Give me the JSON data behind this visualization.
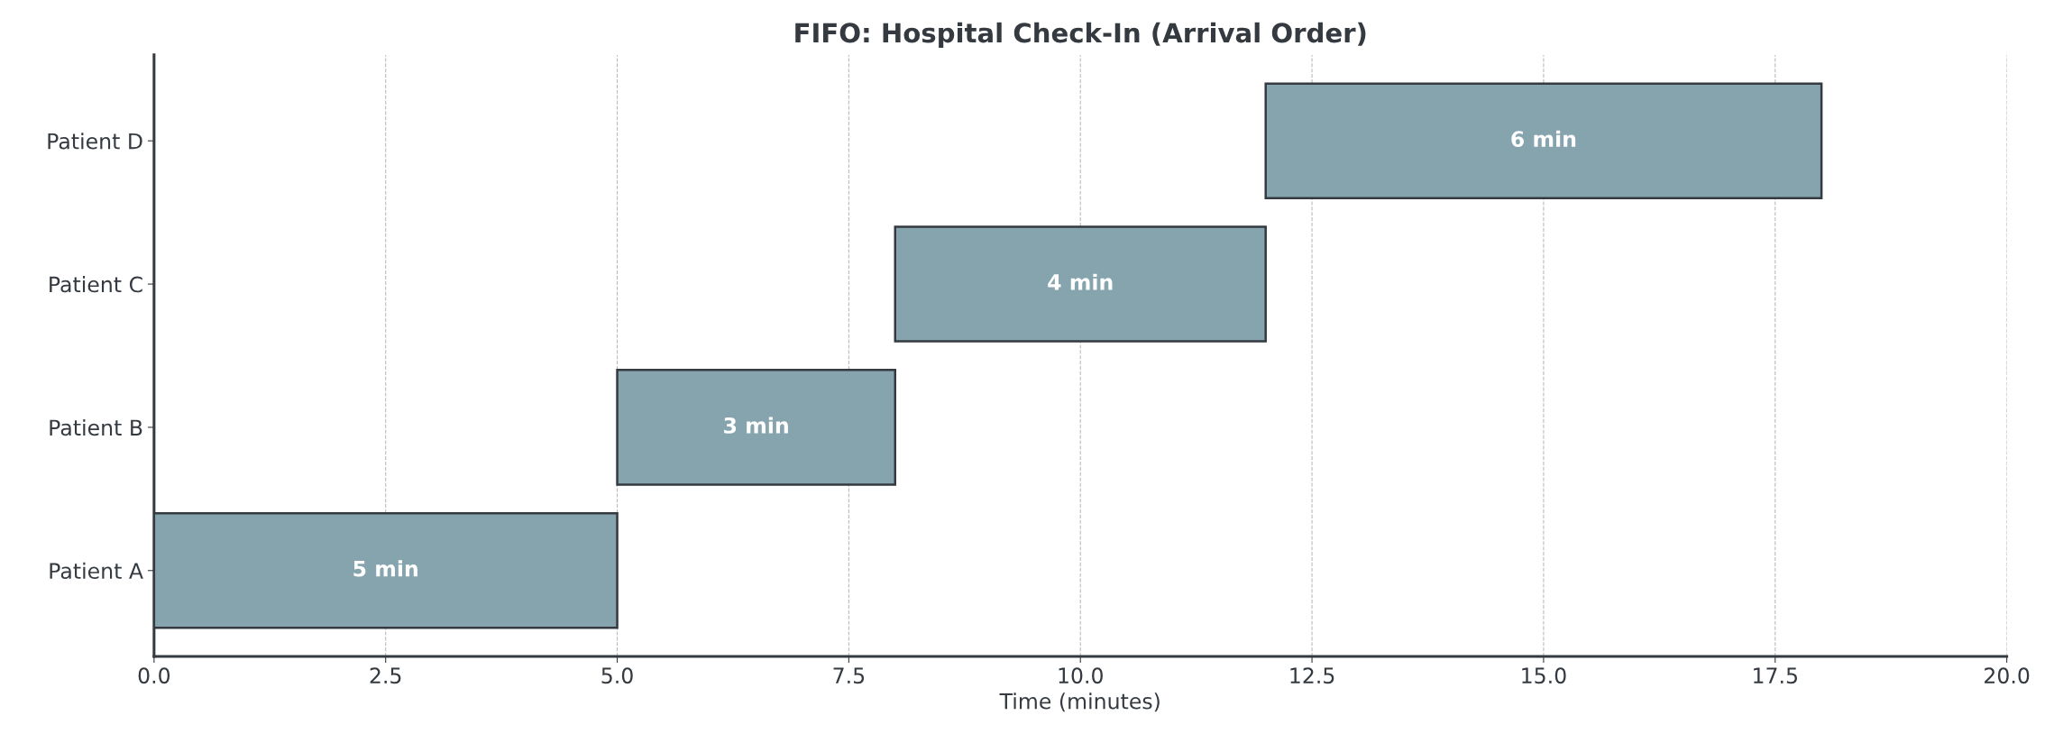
{
  "chart_data": {
    "type": "bar",
    "orientation": "horizontal",
    "title": "FIFO: Hospital Check-In (Arrival Order)",
    "xlabel": "Time (minutes)",
    "categories": [
      "Patient D",
      "Patient C",
      "Patient B",
      "Patient A"
    ],
    "values": [
      6,
      4,
      3,
      5
    ],
    "base": [
      12,
      8,
      5,
      0
    ],
    "value_labels": [
      "6 min",
      "4 min",
      "3 min",
      "5 min"
    ],
    "color": "#86a4ae",
    "xlim": [
      0,
      20
    ],
    "xticks": [
      {
        "value": 0,
        "label": "0.0"
      },
      {
        "value": 2.5,
        "label": "2.5"
      },
      {
        "value": 5,
        "label": "5.0"
      },
      {
        "value": 7.5,
        "label": "7.5"
      },
      {
        "value": 10,
        "label": "10.0"
      },
      {
        "value": 12.5,
        "label": "12.5"
      },
      {
        "value": 15,
        "label": "15.0"
      },
      {
        "value": 17.5,
        "label": "17.5"
      },
      {
        "value": 20,
        "label": "20.0"
      }
    ],
    "grid": "x"
  }
}
